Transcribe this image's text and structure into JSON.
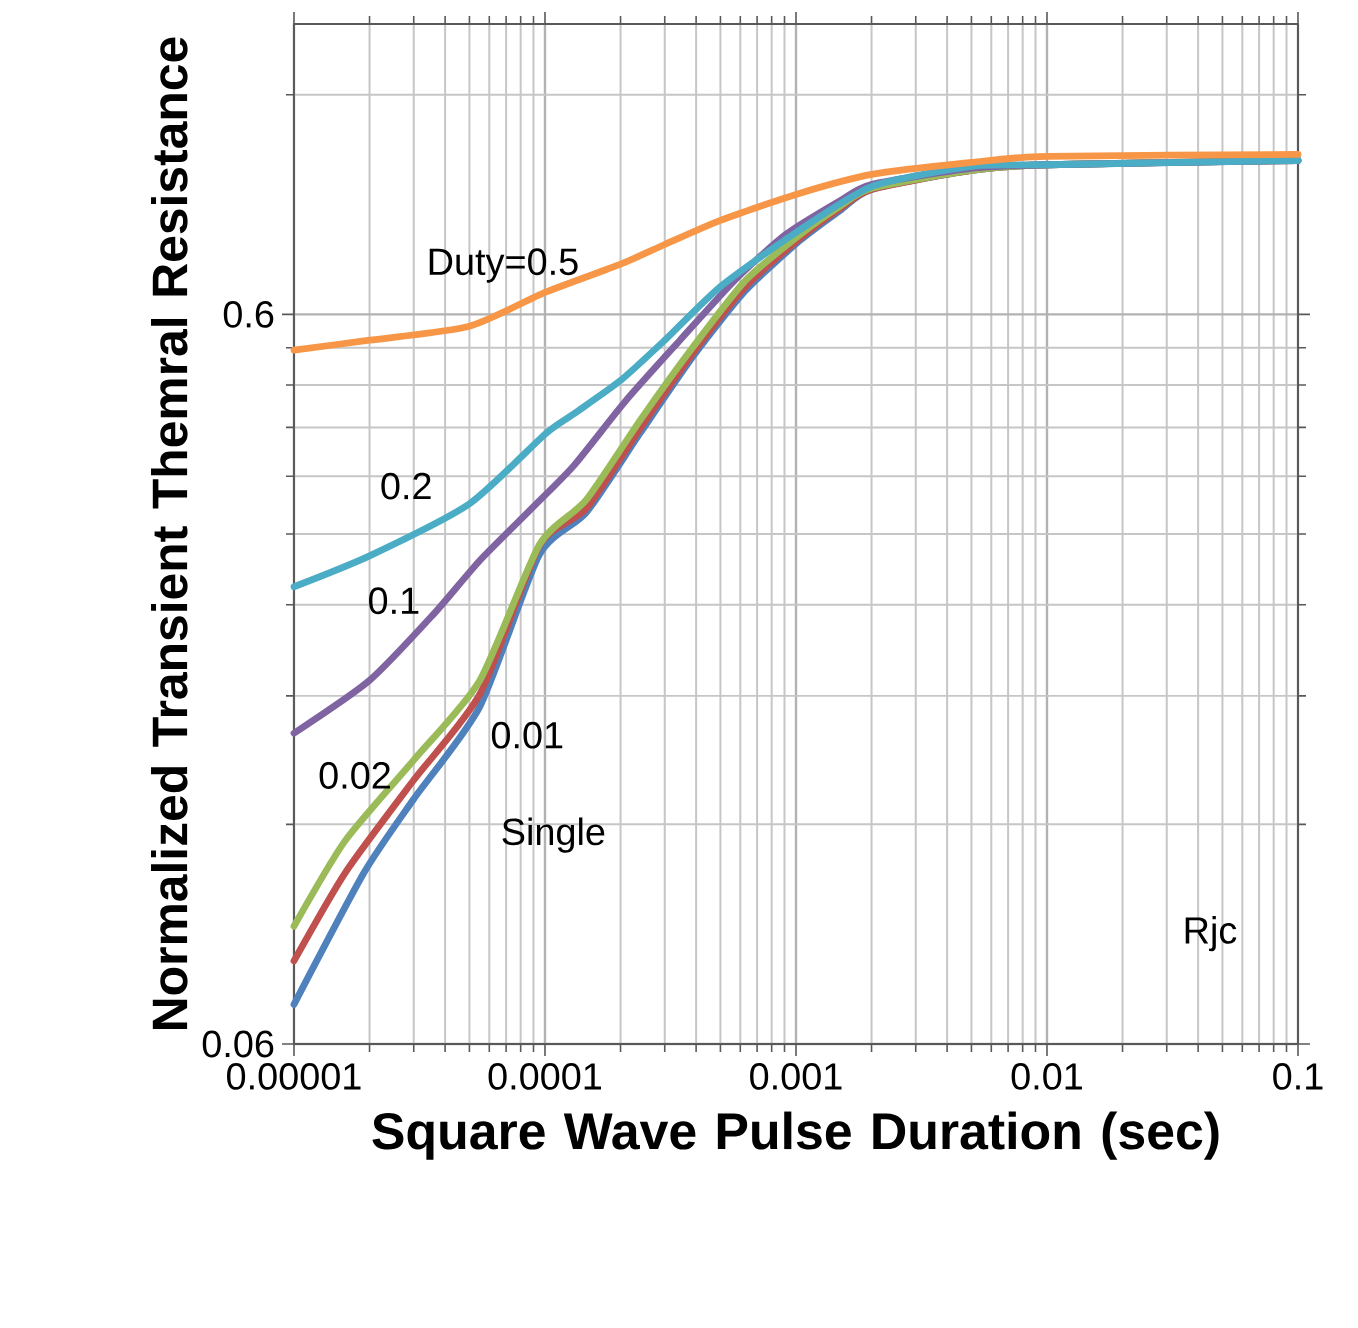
{
  "chart_data": {
    "type": "line",
    "xlabel": "Square Wave Pulse Duration (sec)",
    "ylabel": "Normalized Transient Themral Resistance",
    "log": "xy",
    "grid": true,
    "xlim": [
      1e-05,
      0.1
    ],
    "xticks": [
      {
        "value": 1e-05,
        "label": "0.00001"
      },
      {
        "value": 0.0001,
        "label": "0.0001"
      },
      {
        "value": 0.001,
        "label": "0.001"
      },
      {
        "value": 0.01,
        "label": "0.01"
      },
      {
        "value": 0.1,
        "label": "0.1"
      }
    ],
    "ylim": [
      0.06,
      1.5
    ],
    "yticks": [
      0.06,
      0.6
    ],
    "annotations": [
      "Rjc"
    ],
    "series": [
      {
        "name": "Single",
        "color": "#4f81bd",
        "x": [
          1e-05,
          1.9e-05,
          3e-05,
          5.5e-05,
          9.5e-05,
          0.000146,
          0.00024,
          0.00039,
          0.00063,
          0.00104,
          0.0015,
          0.002,
          0.005,
          0.01,
          0.1
        ],
        "values": [
          0.068,
          0.103,
          0.13,
          0.174,
          0.281,
          0.321,
          0.413,
          0.526,
          0.647,
          0.758,
          0.833,
          0.89,
          0.945,
          0.962,
          0.975
        ]
      },
      {
        "name": "0.01",
        "color": "#c0504d",
        "x": [
          1e-05,
          1.6e-05,
          3e-05,
          5.5e-05,
          9.5e-05,
          0.000146,
          0.00024,
          0.00039,
          0.00063,
          0.00104,
          0.0015,
          0.002,
          0.005,
          0.01,
          0.1
        ],
        "values": [
          0.078,
          0.103,
          0.138,
          0.181,
          0.289,
          0.325,
          0.419,
          0.532,
          0.655,
          0.763,
          0.838,
          0.89,
          0.945,
          0.962,
          0.975
        ]
      },
      {
        "name": "0.02",
        "color": "#9bbb59",
        "x": [
          1e-05,
          1.6e-05,
          3e-05,
          5.5e-05,
          9.5e-05,
          0.000146,
          0.00024,
          0.00039,
          0.00063,
          0.00104,
          0.0015,
          0.002,
          0.005,
          0.01,
          0.1
        ],
        "values": [
          0.087,
          0.114,
          0.147,
          0.189,
          0.29,
          0.334,
          0.43,
          0.542,
          0.668,
          0.772,
          0.844,
          0.893,
          0.945,
          0.962,
          0.975
        ]
      },
      {
        "name": "0.1",
        "color": "#8064a2",
        "x": [
          1e-05,
          2e-05,
          3.6e-05,
          5.5e-05,
          9e-05,
          0.00013,
          0.00021,
          0.000345,
          0.00057,
          0.00091,
          0.0015,
          0.002,
          0.005,
          0.01,
          0.1
        ],
        "values": [
          0.16,
          0.189,
          0.233,
          0.276,
          0.327,
          0.372,
          0.457,
          0.553,
          0.668,
          0.772,
          0.859,
          0.904,
          0.951,
          0.962,
          0.975
        ]
      },
      {
        "name": "0.2",
        "color": "#4bacc6",
        "x": [
          1e-05,
          2e-05,
          5e-05,
          0.0001,
          0.00013,
          0.0002,
          0.0003,
          0.0005,
          0.001,
          0.002,
          0.005,
          0.01,
          0.1
        ],
        "values": [
          0.254,
          0.28,
          0.33,
          0.411,
          0.438,
          0.487,
          0.553,
          0.655,
          0.777,
          0.898,
          0.957,
          0.962,
          0.975
        ]
      },
      {
        "name": "Duty=0.5",
        "color": "#f79646",
        "x": [
          1e-05,
          2e-05,
          5e-05,
          0.0001,
          0.0002,
          0.0003,
          0.0005,
          0.001,
          0.002,
          0.005,
          0.01,
          0.1
        ],
        "values": [
          0.536,
          0.553,
          0.578,
          0.643,
          0.703,
          0.748,
          0.807,
          0.876,
          0.933,
          0.969,
          0.988,
          0.994
        ]
      }
    ]
  }
}
